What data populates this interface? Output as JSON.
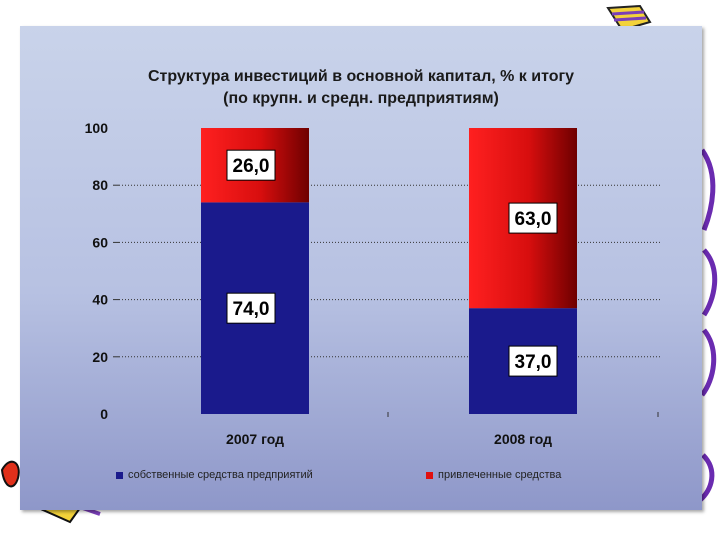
{
  "colors": {
    "own_funds": "#1a1a8c",
    "borrowed_funds_light": "#ff1a1a",
    "borrowed_funds_dark": "#7a0000",
    "panel_top": "#c9d3ea",
    "panel_bottom": "#8e97c9"
  },
  "chart_data": {
    "type": "bar",
    "stacked": true,
    "title": "Структура инвестиций в основной капитал, % к итогу",
    "subtitle": "(по крупн. и средн. предприятиям)",
    "categories": [
      "2007 год",
      "2008 год"
    ],
    "series": [
      {
        "name": "собственные средства предприятий",
        "values": [
          74.0,
          37.0
        ],
        "labels": [
          "74,0",
          "37,0"
        ],
        "color": "#1a1a8c"
      },
      {
        "name": "привлеченные средства",
        "values": [
          26.0,
          63.0
        ],
        "labels": [
          "26,0",
          "63,0"
        ],
        "color": "#e01010"
      }
    ],
    "y_ticks": [
      0,
      20,
      40,
      60,
      80,
      100
    ],
    "ylim": [
      0,
      100
    ],
    "grid": true,
    "legend": "bottom"
  }
}
